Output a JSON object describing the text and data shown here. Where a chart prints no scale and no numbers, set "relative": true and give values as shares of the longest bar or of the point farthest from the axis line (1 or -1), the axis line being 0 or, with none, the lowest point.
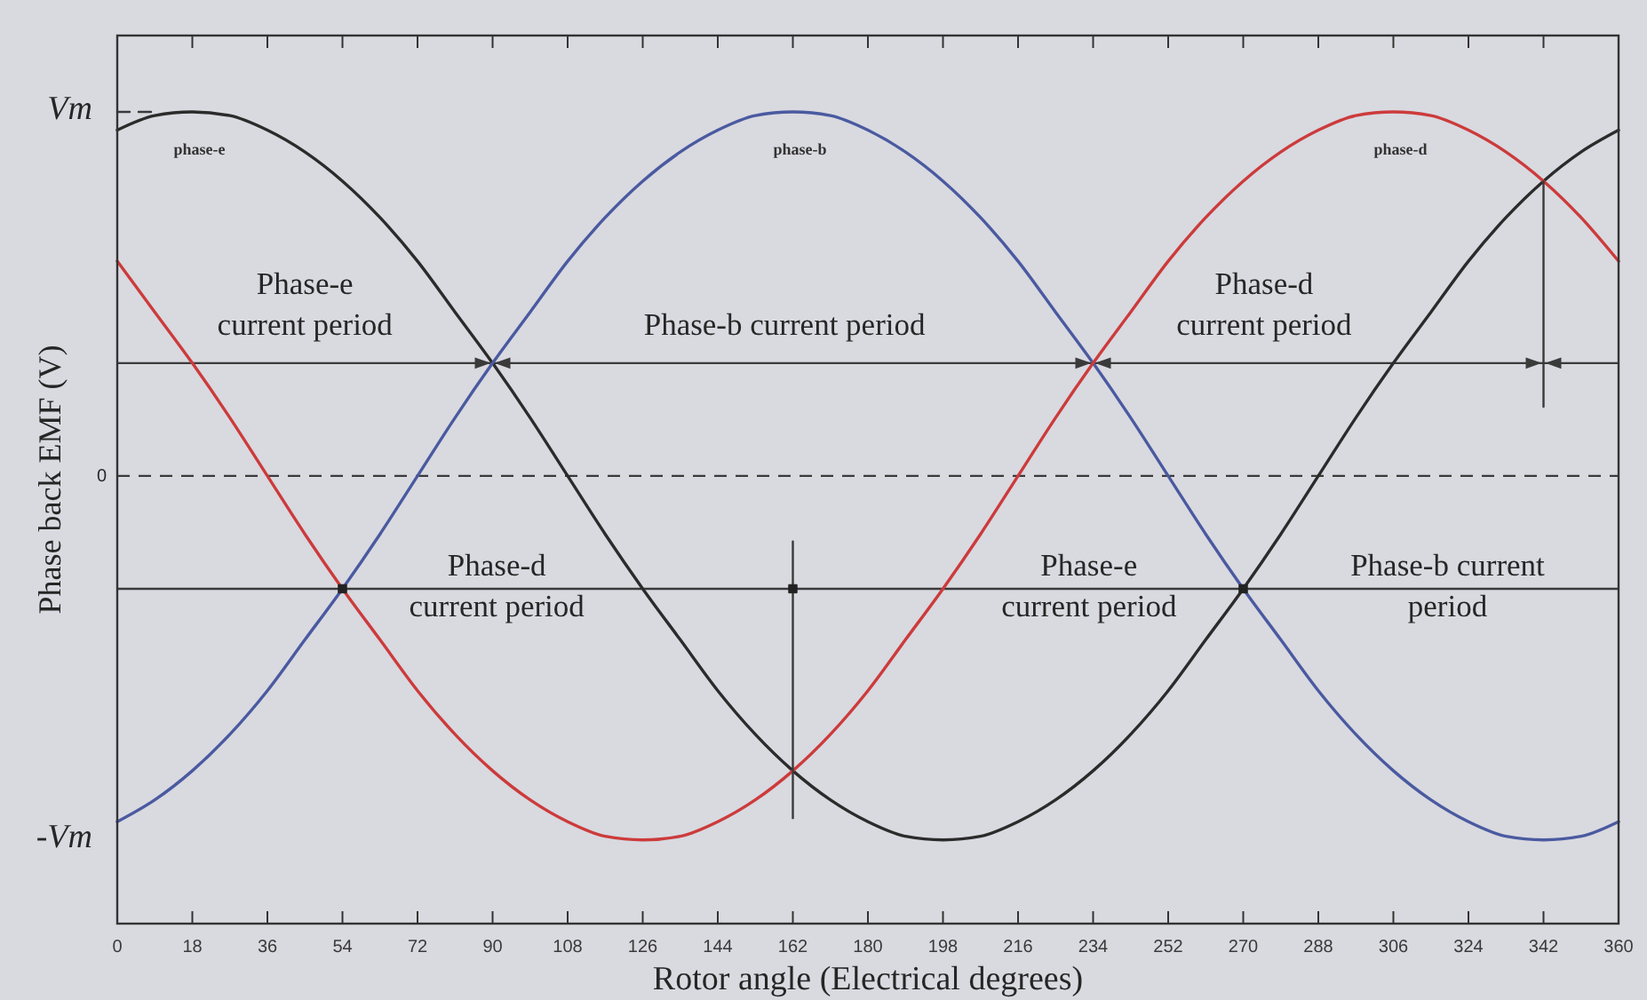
{
  "chart_data": {
    "type": "line",
    "relative": true,
    "xlabel": "Rotor angle (Electrical degrees)",
    "ylabel": "Phase back EMF (V)",
    "x": [
      0,
      9,
      18,
      27,
      36,
      45,
      54,
      63,
      72,
      81,
      90,
      99,
      108,
      117,
      126,
      135,
      144,
      153,
      162,
      171,
      180,
      189,
      198,
      207,
      216,
      225,
      234,
      243,
      252,
      261,
      270,
      279,
      288,
      297,
      306,
      315,
      324,
      333,
      342,
      351,
      360
    ],
    "xlim": [
      0,
      360
    ],
    "xticks": [
      0,
      18,
      36,
      54,
      72,
      90,
      108,
      126,
      144,
      162,
      180,
      198,
      216,
      234,
      252,
      270,
      288,
      306,
      324,
      342,
      360
    ],
    "series": [
      {
        "name": "phase-e",
        "color": "#2b2b2b",
        "values": [
          0.95,
          0.99,
          1,
          0.99,
          0.95,
          0.89,
          0.81,
          0.71,
          0.59,
          0.45,
          0.31,
          0.16,
          0,
          -0.16,
          -0.31,
          -0.45,
          -0.59,
          -0.71,
          -0.81,
          -0.89,
          -0.95,
          -0.99,
          -1,
          -0.99,
          -0.95,
          -0.89,
          -0.81,
          -0.71,
          -0.59,
          -0.45,
          -0.31,
          -0.16,
          0,
          0.16,
          0.31,
          0.45,
          0.59,
          0.71,
          0.81,
          0.89,
          0.95
        ]
      },
      {
        "name": "phase-b",
        "color": "#4a5aa0",
        "values": [
          -0.95,
          -0.89,
          -0.81,
          -0.71,
          -0.59,
          -0.45,
          -0.31,
          -0.16,
          0,
          0.16,
          0.31,
          0.45,
          0.59,
          0.71,
          0.81,
          0.89,
          0.95,
          0.99,
          1,
          0.99,
          0.95,
          0.89,
          0.81,
          0.71,
          0.59,
          0.45,
          0.31,
          0.16,
          0,
          -0.16,
          -0.31,
          -0.45,
          -0.59,
          -0.71,
          -0.81,
          -0.89,
          -0.95,
          -0.99,
          -1,
          -0.99,
          -0.95
        ]
      },
      {
        "name": "phase-d",
        "color": "#cc3b3b",
        "values": [
          0.59,
          0.45,
          0.31,
          0.16,
          0,
          -0.16,
          -0.31,
          -0.45,
          -0.59,
          -0.71,
          -0.81,
          -0.89,
          -0.95,
          -0.99,
          -1,
          -0.99,
          -0.95,
          -0.89,
          -0.81,
          -0.71,
          -0.59,
          -0.45,
          -0.31,
          -0.16,
          0,
          0.16,
          0.31,
          0.45,
          0.59,
          0.71,
          0.81,
          0.89,
          0.95,
          0.99,
          1,
          0.99,
          0.95,
          0.89,
          0.81,
          0.71,
          0.59
        ]
      },
      {
        "type": "line",
        "x": [
          0,
          10
        ],
        "values": [
          1,
          1
        ],
        "color": "#3a3a3a",
        "line_style": "dashed"
      },
      {
        "type": "line",
        "x": [
          342,
          342
        ],
        "values": [
          0.81,
          0.19
        ],
        "color": "#3a3a3a"
      },
      {
        "type": "line",
        "x": [
          162,
          162
        ],
        "values": [
          -0.18,
          -0.94
        ],
        "color": "#3a3a3a"
      },
      {
        "type": "scatter",
        "x": [
          54,
          162,
          270
        ],
        "values": [
          -0.31,
          -0.31,
          -0.31
        ],
        "color": "#222222",
        "marker": "square"
      }
    ],
    "ref_lines": [
      {
        "axis": "y",
        "value": 0,
        "color": "#3a3a3a",
        "line_style": "dashed"
      },
      {
        "axis": "y",
        "value": 0.31,
        "color": "#3a3a3a"
      },
      {
        "axis": "y",
        "value": -0.31,
        "color": "#3a3a3a"
      }
    ],
    "annotations": [
      {
        "text": "Vm",
        "x": 0,
        "y": 1
      },
      {
        "text": "0",
        "x": 0,
        "y": 0
      },
      "-Vm",
      {
        "text": "Phase-e\ncurrent period",
        "x": 45,
        "y": 0.31
      },
      {
        "text": "Phase-b current period",
        "x": 160,
        "y": 0.31
      },
      {
        "text": "Phase-d\ncurrent period",
        "x": 275,
        "y": 0.31
      },
      {
        "text": "Phase-d\ncurrent period",
        "x": 91,
        "y": -0.31
      },
      {
        "text": "Phase-e\ncurrent period",
        "x": 233,
        "y": -0.31
      },
      {
        "text": "Phase-b current\nperiod",
        "x": 319,
        "y": -0.31
      }
    ]
  }
}
